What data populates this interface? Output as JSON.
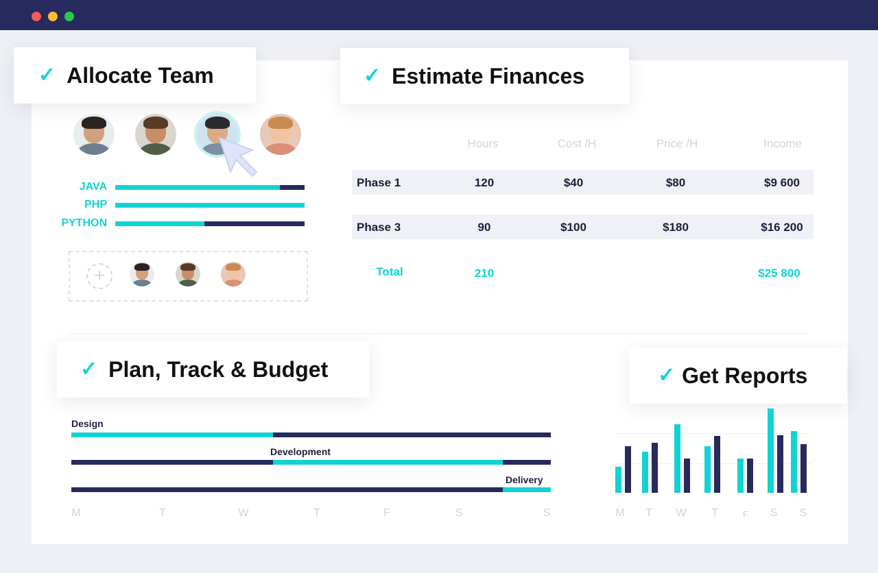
{
  "colors": {
    "accent": "#11d3d3",
    "navy": "#262a5c"
  },
  "window": {
    "controls": [
      "close",
      "minimize",
      "maximize"
    ]
  },
  "cards": {
    "allocate": "Allocate Team",
    "estimate": "Estimate Finances",
    "plan": "Plan, Track & Budget",
    "reports": "Get Reports"
  },
  "team": {
    "avatars": [
      "team-member-1",
      "team-member-2",
      "team-member-3",
      "team-member-4"
    ],
    "skills": [
      {
        "label": "JAVA",
        "level": 0.87
      },
      {
        "label": "PHP",
        "level": 1.0
      },
      {
        "label": "PYTHON",
        "level": 0.47
      }
    ],
    "add_icon": "+"
  },
  "finances": {
    "headers": [
      "Hours",
      "Cost /H",
      "Price /H",
      "Income"
    ],
    "rows": [
      {
        "phase": "Phase 1",
        "hours": "120",
        "cost": "$40",
        "price": "$80",
        "income": "$9 600"
      },
      {
        "phase": "Phase 3",
        "hours": "90",
        "cost": "$100",
        "price": "$180",
        "income": "$16 200"
      }
    ],
    "total": {
      "label": "Total",
      "hours": "210",
      "income": "$25 800"
    }
  },
  "gantt": {
    "tasks": [
      {
        "label": "Design",
        "start": 0,
        "end": 0.42
      },
      {
        "label": "Development",
        "start": 0.42,
        "end": 0.9
      },
      {
        "label": "Delivery",
        "start": 0.9,
        "end": 1.0
      }
    ],
    "days": [
      "M",
      "T",
      "W",
      "T",
      "F",
      "S",
      "S"
    ]
  },
  "reports": {
    "days": [
      "M",
      "T",
      "W",
      "T",
      "F",
      "S",
      "S"
    ],
    "series_a": [
      38,
      60,
      100,
      68,
      50,
      123,
      90
    ],
    "series_b": [
      68,
      73,
      50,
      83,
      50,
      84,
      71
    ]
  }
}
